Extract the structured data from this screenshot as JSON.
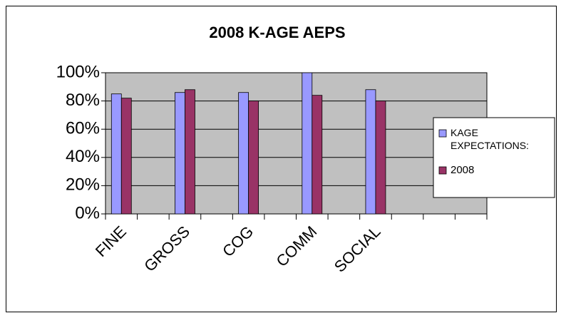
{
  "chart_data": {
    "type": "bar",
    "title": "2008 K-AGE AEPS",
    "categories": [
      "FINE",
      null,
      "GROSS",
      null,
      "COG",
      null,
      "COMM",
      null,
      "SOCIAL",
      null,
      null,
      null
    ],
    "series": [
      {
        "name": "KAGE EXPECTATIONS:",
        "color": "#9999ff",
        "values": [
          85,
          null,
          86,
          null,
          86,
          null,
          100,
          null,
          88,
          null,
          null,
          null
        ]
      },
      {
        "name": "2008",
        "color": "#993366",
        "values": [
          82,
          null,
          88,
          null,
          80,
          null,
          84,
          null,
          80,
          null,
          null,
          null
        ]
      }
    ],
    "ylim": [
      0,
      100
    ],
    "yticks": [
      {
        "value": 0,
        "label": "0%"
      },
      {
        "value": 20,
        "label": "20%"
      },
      {
        "value": 40,
        "label": "40%"
      },
      {
        "value": 60,
        "label": "60%"
      },
      {
        "value": 80,
        "label": "80%"
      },
      {
        "value": 100,
        "label": "100%"
      }
    ],
    "grid": true,
    "legend": "right",
    "plot_background": "#c0c0c0"
  }
}
